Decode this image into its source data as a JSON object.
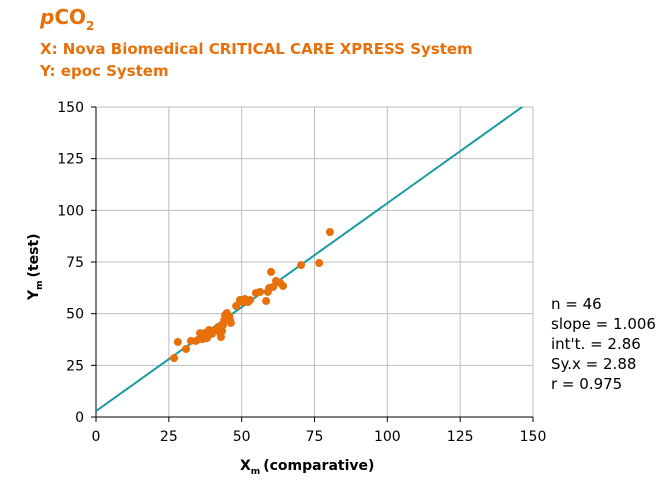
{
  "chart_data": {
    "type": "scatter",
    "title_parts": [
      "p",
      "CO",
      "2"
    ],
    "subtitles": [
      "X: Nova Biomedical CRITICAL CARE XPRESS System",
      "Y: epoc System"
    ],
    "x_label_parts": [
      "X",
      "m",
      "(comparative)"
    ],
    "y_label_parts": [
      "Y",
      "m",
      "(test)"
    ],
    "annotations": [
      "n = 46",
      "slope = 1.006",
      "int't. = 2.86",
      "Sy.x = 2.88",
      "r = 0.975"
    ],
    "xlim": [
      0,
      150
    ],
    "xticks": [
      0,
      25,
      50,
      75,
      100,
      125,
      150
    ],
    "ylim": [
      0,
      150
    ],
    "yticks": [
      0,
      25,
      50,
      75,
      100,
      125,
      150
    ],
    "grid": true,
    "regression": {
      "slope": 1.006,
      "intercept": 2.86,
      "color": "#1a9ba1"
    },
    "series": [
      {
        "color": "#e8700a",
        "x": [
          26.8,
          28.1,
          30.9,
          32.6,
          34.3,
          35.4,
          35.7,
          36.7,
          37.4,
          38.1,
          38.8,
          39.8,
          40.5,
          41.2,
          41.9,
          42.6,
          42.9,
          42.6,
          43.6,
          43.3,
          44.0,
          44.3,
          45.3,
          44.9,
          46.0,
          46.3,
          45.7,
          48.1,
          50.1,
          51.1,
          52.2,
          52.9,
          54.9,
          56.3,
          58.4,
          59.0,
          60.1,
          60.8,
          61.8,
          63.2,
          64.2,
          59.4,
          70.4,
          76.6,
          80.3,
          49.4
        ],
        "values": [
          28.5,
          36.3,
          32.9,
          36.8,
          36.8,
          37.7,
          40.6,
          37.7,
          40.6,
          38.2,
          42.1,
          40.2,
          41.6,
          42.1,
          43.5,
          40.6,
          38.7,
          44.0,
          44.5,
          41.6,
          46.9,
          49.3,
          47.9,
          50.3,
          46.9,
          45.5,
          48.9,
          53.7,
          55.6,
          57.1,
          55.6,
          56.6,
          60.0,
          60.5,
          56.1,
          60.5,
          70.2,
          62.9,
          65.8,
          64.8,
          63.4,
          62.4,
          73.5,
          74.5,
          89.5,
          56.6
        ]
      }
    ]
  }
}
